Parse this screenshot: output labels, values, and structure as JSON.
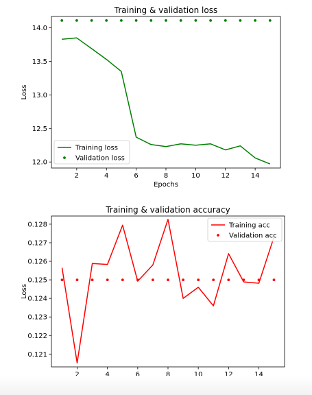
{
  "chart_data": [
    {
      "type": "line",
      "title": "Training & validation loss",
      "xlabel": "Epochs",
      "ylabel": "Loss",
      "xlim": [
        0.3,
        15.7
      ],
      "ylim": [
        11.91,
        14.17
      ],
      "xticks": [
        "2",
        "4",
        "6",
        "8",
        "10",
        "12",
        "14"
      ],
      "yticks": [
        "12.0",
        "12.5",
        "13.0",
        "13.5",
        "14.0"
      ],
      "legend_position": "lower left",
      "grid": false,
      "x": [
        1,
        2,
        3,
        4,
        5,
        6,
        7,
        8,
        9,
        10,
        11,
        12,
        13,
        14,
        15
      ],
      "series": [
        {
          "name": "Training loss",
          "style": "line",
          "color": "#008000",
          "values": [
            13.83,
            13.85,
            13.69,
            13.53,
            13.35,
            12.37,
            12.26,
            12.23,
            12.27,
            12.25,
            12.27,
            12.18,
            12.24,
            12.06,
            11.97
          ]
        },
        {
          "name": "Validation loss",
          "style": "points",
          "color": "#008000",
          "values": [
            14.11,
            14.11,
            14.11,
            14.11,
            14.11,
            14.11,
            14.11,
            14.11,
            14.11,
            14.11,
            14.11,
            14.11,
            14.11,
            14.11,
            14.11
          ]
        }
      ]
    },
    {
      "type": "line",
      "title": "Training & validation accuracy",
      "xlabel": "Epochs",
      "ylabel": "Loss",
      "xlim": [
        0.3,
        15.7
      ],
      "ylim": [
        0.12031,
        0.12844
      ],
      "xticks": [
        "2",
        "4",
        "6",
        "8",
        "10",
        "12",
        "14"
      ],
      "yticks": [
        "0.121",
        "0.122",
        "0.123",
        "0.124",
        "0.125",
        "0.126",
        "0.127",
        "0.128"
      ],
      "legend_position": "upper right",
      "grid": false,
      "x": [
        1,
        2,
        3,
        4,
        5,
        6,
        7,
        8,
        9,
        10,
        11,
        12,
        13,
        14,
        15
      ],
      "series": [
        {
          "name": "Training acc",
          "style": "line",
          "color": "#ff0000",
          "values": [
            0.12565,
            0.12052,
            0.12588,
            0.12583,
            0.12795,
            0.12493,
            0.1258,
            0.12826,
            0.124,
            0.1246,
            0.1236,
            0.12641,
            0.12489,
            0.12482,
            0.1273
          ]
        },
        {
          "name": "Validation acc",
          "style": "points",
          "color": "#ff0000",
          "values": [
            0.125,
            0.125,
            0.125,
            0.125,
            0.125,
            0.125,
            0.125,
            0.125,
            0.125,
            0.125,
            0.125,
            0.125,
            0.125,
            0.125,
            0.125
          ]
        }
      ]
    }
  ]
}
